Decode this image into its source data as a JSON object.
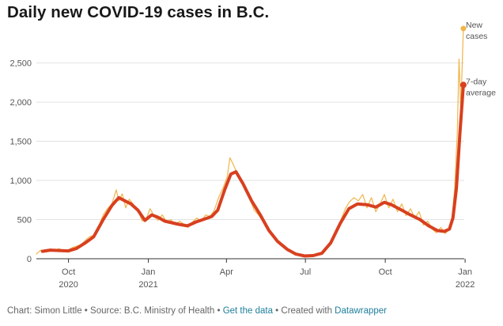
{
  "title": "Daily new COVID-19 cases in B.C.",
  "footer": {
    "chart_by": "Chart: Simon Little",
    "source": "Source: B.C. Ministry of Health",
    "get_data": "Get the data",
    "created_with": "Created with",
    "datawrapper": "Datawrapper",
    "separator": " • "
  },
  "colors": {
    "new_cases": "#f0b54a",
    "average": "#d8401f",
    "grid": "#e2e2e2",
    "axis": "#333333",
    "link": "#1e7e9c"
  },
  "chart_data": {
    "type": "line",
    "title": "Daily new COVID-19 cases in B.C.",
    "xlabel": "",
    "ylabel": "",
    "ylim": [
      0,
      2900
    ],
    "xlim": [
      "2020-08-25",
      "2021-12-31"
    ],
    "y_ticks": [
      0,
      500,
      1000,
      1500,
      2000,
      2500
    ],
    "y_tick_labels": [
      "0",
      "500",
      "1,000",
      "1,500",
      "2,000",
      "2,500"
    ],
    "x_ticks": [
      {
        "date": "2020-10-01",
        "line1": "Oct",
        "line2": "2020"
      },
      {
        "date": "2021-01-01",
        "line1": "Jan",
        "line2": "2021"
      },
      {
        "date": "2021-04-01",
        "line1": "Apr",
        "line2": ""
      },
      {
        "date": "2021-07-01",
        "line1": "Jul",
        "line2": ""
      },
      {
        "date": "2021-10-01",
        "line1": "Oct",
        "line2": ""
      },
      {
        "date": "2022-01-01",
        "line1": "Jan",
        "line2": "2022"
      }
    ],
    "grid": true,
    "series": [
      {
        "name": "New cases",
        "label_lines": [
          "New",
          "cases"
        ],
        "color": "#f0b54a",
        "role": "daily",
        "points": [
          [
            "2020-08-25",
            60
          ],
          [
            "2020-08-30",
            110
          ],
          [
            "2020-09-05",
            85
          ],
          [
            "2020-09-10",
            125
          ],
          [
            "2020-09-15",
            100
          ],
          [
            "2020-09-20",
            130
          ],
          [
            "2020-09-25",
            95
          ],
          [
            "2020-10-01",
            115
          ],
          [
            "2020-10-05",
            140
          ],
          [
            "2020-10-10",
            160
          ],
          [
            "2020-10-15",
            175
          ],
          [
            "2020-10-20",
            230
          ],
          [
            "2020-10-25",
            280
          ],
          [
            "2020-10-30",
            300
          ],
          [
            "2020-11-05",
            420
          ],
          [
            "2020-11-10",
            560
          ],
          [
            "2020-11-15",
            640
          ],
          [
            "2020-11-20",
            700
          ],
          [
            "2020-11-25",
            880
          ],
          [
            "2020-11-28",
            740
          ],
          [
            "2020-12-02",
            830
          ],
          [
            "2020-12-06",
            650
          ],
          [
            "2020-12-10",
            760
          ],
          [
            "2020-12-15",
            690
          ],
          [
            "2020-12-20",
            620
          ],
          [
            "2020-12-25",
            480
          ],
          [
            "2020-12-30",
            520
          ],
          [
            "2021-01-03",
            640
          ],
          [
            "2021-01-08",
            540
          ],
          [
            "2021-01-12",
            490
          ],
          [
            "2021-01-17",
            560
          ],
          [
            "2021-01-22",
            470
          ],
          [
            "2021-01-27",
            500
          ],
          [
            "2021-02-01",
            430
          ],
          [
            "2021-02-06",
            480
          ],
          [
            "2021-02-11",
            440
          ],
          [
            "2021-02-16",
            400
          ],
          [
            "2021-02-21",
            470
          ],
          [
            "2021-02-26",
            520
          ],
          [
            "2021-03-03",
            480
          ],
          [
            "2021-03-08",
            560
          ],
          [
            "2021-03-13",
            540
          ],
          [
            "2021-03-18",
            620
          ],
          [
            "2021-03-23",
            780
          ],
          [
            "2021-03-28",
            900
          ],
          [
            "2021-04-02",
            1050
          ],
          [
            "2021-04-05",
            1290
          ],
          [
            "2021-04-09",
            1200
          ],
          [
            "2021-04-13",
            1100
          ],
          [
            "2021-04-18",
            980
          ],
          [
            "2021-04-23",
            860
          ],
          [
            "2021-04-28",
            760
          ],
          [
            "2021-05-03",
            620
          ],
          [
            "2021-05-08",
            560
          ],
          [
            "2021-05-13",
            480
          ],
          [
            "2021-05-18",
            390
          ],
          [
            "2021-05-23",
            300
          ],
          [
            "2021-05-28",
            250
          ],
          [
            "2021-06-02",
            180
          ],
          [
            "2021-06-07",
            140
          ],
          [
            "2021-06-12",
            110
          ],
          [
            "2021-06-17",
            70
          ],
          [
            "2021-06-22",
            50
          ],
          [
            "2021-06-27",
            35
          ],
          [
            "2021-07-02",
            30
          ],
          [
            "2021-07-07",
            45
          ],
          [
            "2021-07-12",
            40
          ],
          [
            "2021-07-17",
            50
          ],
          [
            "2021-07-22",
            90
          ],
          [
            "2021-07-27",
            150
          ],
          [
            "2021-08-01",
            230
          ],
          [
            "2021-08-06",
            360
          ],
          [
            "2021-08-11",
            500
          ],
          [
            "2021-08-16",
            640
          ],
          [
            "2021-08-21",
            730
          ],
          [
            "2021-08-26",
            780
          ],
          [
            "2021-08-31",
            740
          ],
          [
            "2021-09-05",
            820
          ],
          [
            "2021-09-10",
            650
          ],
          [
            "2021-09-15",
            780
          ],
          [
            "2021-09-20",
            600
          ],
          [
            "2021-09-25",
            700
          ],
          [
            "2021-09-30",
            820
          ],
          [
            "2021-10-05",
            650
          ],
          [
            "2021-10-10",
            760
          ],
          [
            "2021-10-15",
            600
          ],
          [
            "2021-10-20",
            700
          ],
          [
            "2021-10-25",
            550
          ],
          [
            "2021-10-30",
            640
          ],
          [
            "2021-11-04",
            520
          ],
          [
            "2021-11-09",
            600
          ],
          [
            "2021-11-14",
            430
          ],
          [
            "2021-11-19",
            480
          ],
          [
            "2021-11-24",
            380
          ],
          [
            "2021-11-29",
            330
          ],
          [
            "2021-12-04",
            400
          ],
          [
            "2021-12-09",
            320
          ],
          [
            "2021-12-14",
            380
          ],
          [
            "2021-12-17",
            520
          ],
          [
            "2021-12-20",
            900
          ],
          [
            "2021-12-23",
            1600
          ],
          [
            "2021-12-25",
            2550
          ],
          [
            "2021-12-27",
            1900
          ],
          [
            "2021-12-30",
            2940
          ]
        ]
      },
      {
        "name": "7-day average",
        "label_lines": [
          "7-day",
          "average"
        ],
        "color": "#d8401f",
        "role": "average",
        "points": [
          [
            "2020-09-01",
            95
          ],
          [
            "2020-09-10",
            110
          ],
          [
            "2020-09-20",
            105
          ],
          [
            "2020-10-01",
            100
          ],
          [
            "2020-10-10",
            130
          ],
          [
            "2020-10-20",
            200
          ],
          [
            "2020-10-30",
            280
          ],
          [
            "2020-11-10",
            500
          ],
          [
            "2020-11-20",
            680
          ],
          [
            "2020-11-28",
            780
          ],
          [
            "2020-12-05",
            740
          ],
          [
            "2020-12-12",
            700
          ],
          [
            "2020-12-20",
            620
          ],
          [
            "2020-12-28",
            490
          ],
          [
            "2021-01-05",
            560
          ],
          [
            "2021-01-12",
            530
          ],
          [
            "2021-01-20",
            480
          ],
          [
            "2021-01-28",
            460
          ],
          [
            "2021-02-05",
            440
          ],
          [
            "2021-02-15",
            420
          ],
          [
            "2021-02-25",
            470
          ],
          [
            "2021-03-05",
            500
          ],
          [
            "2021-03-15",
            540
          ],
          [
            "2021-03-22",
            620
          ],
          [
            "2021-03-30",
            880
          ],
          [
            "2021-04-06",
            1080
          ],
          [
            "2021-04-12",
            1110
          ],
          [
            "2021-04-20",
            960
          ],
          [
            "2021-04-30",
            740
          ],
          [
            "2021-05-10",
            560
          ],
          [
            "2021-05-20",
            360
          ],
          [
            "2021-05-30",
            220
          ],
          [
            "2021-06-10",
            120
          ],
          [
            "2021-06-20",
            60
          ],
          [
            "2021-06-30",
            35
          ],
          [
            "2021-07-10",
            40
          ],
          [
            "2021-07-20",
            70
          ],
          [
            "2021-07-30",
            200
          ],
          [
            "2021-08-10",
            450
          ],
          [
            "2021-08-20",
            640
          ],
          [
            "2021-08-30",
            700
          ],
          [
            "2021-09-10",
            690
          ],
          [
            "2021-09-20",
            660
          ],
          [
            "2021-09-30",
            720
          ],
          [
            "2021-10-08",
            690
          ],
          [
            "2021-10-20",
            620
          ],
          [
            "2021-10-30",
            560
          ],
          [
            "2021-11-10",
            500
          ],
          [
            "2021-11-20",
            420
          ],
          [
            "2021-11-30",
            360
          ],
          [
            "2021-12-08",
            350
          ],
          [
            "2021-12-14",
            380
          ],
          [
            "2021-12-18",
            520
          ],
          [
            "2021-12-22",
            900
          ],
          [
            "2021-12-26",
            1600
          ],
          [
            "2021-12-30",
            2220
          ]
        ]
      }
    ]
  }
}
